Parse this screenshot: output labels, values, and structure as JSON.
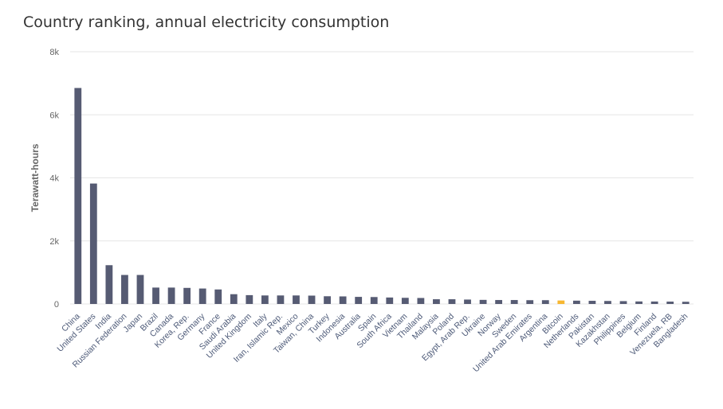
{
  "chart_data": {
    "type": "bar",
    "title": "Country ranking, annual electricity consumption",
    "ylabel": "Terawatt-hours",
    "xlabel": "",
    "ylim": [
      0,
      8000
    ],
    "yticks": [
      0,
      2000,
      4000,
      6000,
      8000
    ],
    "ytick_labels": [
      "0",
      "2k",
      "4k",
      "6k",
      "8k"
    ],
    "grid": true,
    "colors": {
      "bar": "#565b73",
      "highlight": "#f7b731",
      "grid": "#e6e6e6"
    },
    "highlight_category": "Bitcoin",
    "categories": [
      "China",
      "United States",
      "India",
      "Russian Federation",
      "Japan",
      "Brazil",
      "Canada",
      "Korea, Rep.",
      "Germany",
      "France",
      "Saudi Arabia",
      "United Kingdom",
      "Italy",
      "Iran, Islamic Rep.",
      "Mexico",
      "Taiwan, China",
      "Turkey",
      "Indonesia",
      "Australia",
      "Spain",
      "South Africa",
      "Vietnam",
      "Thailand",
      "Malaysia",
      "Poland",
      "Egypt, Arab Rep.",
      "Ukraine",
      "Norway",
      "Sweden",
      "United Arab Emirates",
      "Argentina",
      "Bitcoin",
      "Netherlands",
      "Pakistan",
      "Kazakhstan",
      "Philippines",
      "Belgium",
      "Finland",
      "Venezuela, RB",
      "Bangladesh"
    ],
    "values": [
      6850,
      3820,
      1230,
      920,
      920,
      520,
      520,
      510,
      490,
      460,
      310,
      280,
      270,
      270,
      270,
      265,
      245,
      240,
      225,
      220,
      205,
      195,
      190,
      150,
      150,
      140,
      130,
      125,
      125,
      120,
      120,
      110,
      105,
      100,
      95,
      90,
      80,
      78,
      75,
      70
    ]
  }
}
